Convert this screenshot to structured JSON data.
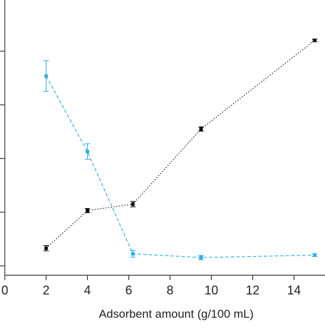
{
  "chart_data": {
    "type": "line",
    "title": "",
    "xlabel": "Adsorbent amount (g/100 mL)",
    "ylabel": "",
    "xlim": [
      0,
      15.5
    ],
    "ylim": [
      0,
      1
    ],
    "xticks": [
      0,
      2,
      4,
      6,
      8,
      10,
      12,
      14
    ],
    "xtick_labels": [
      "0",
      "2",
      "4",
      "6",
      "8",
      "10",
      "12",
      "14"
    ],
    "yticks_positions": [
      0.035,
      0.235,
      0.435,
      0.635,
      0.835
    ],
    "grid": false,
    "legend": "none",
    "series": [
      {
        "color": "#000000",
        "line_style": "dotted",
        "x": [
          2,
          4,
          6.2,
          9.5,
          15
        ],
        "y": [
          0.101,
          0.241,
          0.265,
          0.545,
          0.875
        ],
        "err": [
          0.01,
          0.008,
          0.01,
          0.008,
          0.005
        ]
      },
      {
        "color": "#29abe2",
        "line_style": "dashed",
        "x": [
          2,
          4,
          6.2,
          9.5,
          15
        ],
        "y": [
          0.742,
          0.461,
          0.08,
          0.066,
          0.075
        ],
        "err": [
          0.057,
          0.029,
          0.013,
          0.008,
          0.005
        ]
      }
    ]
  }
}
